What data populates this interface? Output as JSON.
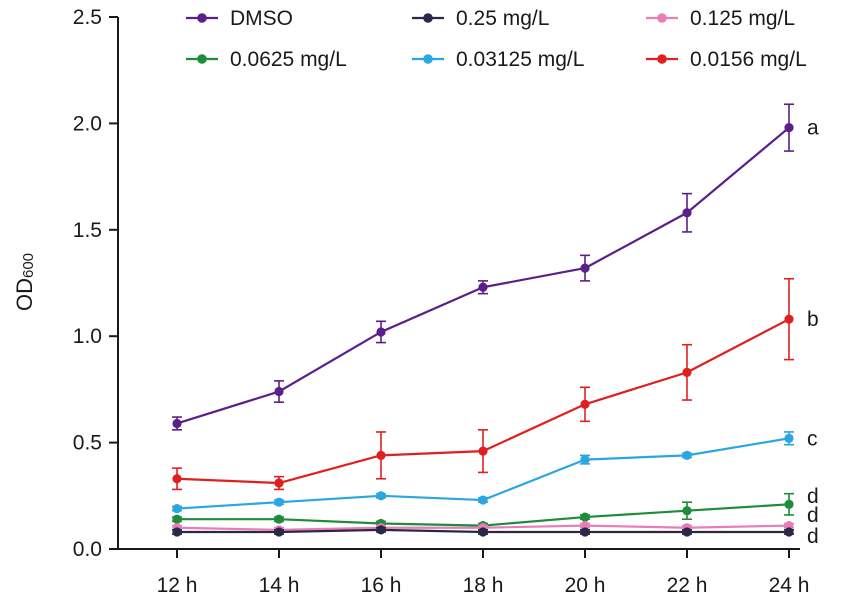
{
  "chart_data": {
    "type": "line",
    "title": "",
    "xlabel": "",
    "ylabel": "OD",
    "ylabel_subscript": "600",
    "categories": [
      "12 h",
      "14 h",
      "16 h",
      "18 h",
      "20 h",
      "22 h",
      "24 h"
    ],
    "ylim": [
      0,
      2.5
    ],
    "yticks": [
      "0.0",
      "0.5",
      "1.0",
      "1.5",
      "2.0",
      "2.5"
    ],
    "ytick_values": [
      0,
      0.5,
      1.0,
      1.5,
      2.0,
      2.5
    ],
    "grid": false,
    "legend_position": "top",
    "series": [
      {
        "name": "DMSO",
        "color": "#5b1f8a",
        "values": [
          0.59,
          0.74,
          1.02,
          1.23,
          1.32,
          1.58,
          1.98
        ],
        "errors": [
          0.03,
          0.05,
          0.05,
          0.03,
          0.06,
          0.09,
          0.11
        ],
        "letter": "a"
      },
      {
        "name": "0.25 mg/L",
        "color": "#2b2747",
        "values": [
          0.08,
          0.08,
          0.09,
          0.08,
          0.08,
          0.08,
          0.08
        ],
        "errors": [
          0.01,
          0.01,
          0.01,
          0.01,
          0.01,
          0.01,
          0.01
        ],
        "letter": "d"
      },
      {
        "name": "0.125 mg/L",
        "color": "#e77fb6",
        "values": [
          0.1,
          0.09,
          0.1,
          0.1,
          0.11,
          0.1,
          0.11
        ],
        "errors": [
          0.01,
          0.01,
          0.01,
          0.01,
          0.01,
          0.01,
          0.01
        ],
        "letter": "d"
      },
      {
        "name": "0.0625 mg/L",
        "color": "#1e8c3a",
        "values": [
          0.14,
          0.14,
          0.12,
          0.11,
          0.15,
          0.18,
          0.21
        ],
        "errors": [
          0.01,
          0.01,
          0.01,
          0.01,
          0.01,
          0.04,
          0.05
        ],
        "letter": "d"
      },
      {
        "name": "0.03125 mg/L",
        "color": "#2aa6e0",
        "values": [
          0.19,
          0.22,
          0.25,
          0.23,
          0.42,
          0.44,
          0.52
        ],
        "errors": [
          0.01,
          0.01,
          0.01,
          0.01,
          0.02,
          0.01,
          0.03
        ],
        "letter": "c"
      },
      {
        "name": "0.0156 mg/L",
        "color": "#e0201e",
        "values": [
          0.33,
          0.31,
          0.44,
          0.46,
          0.68,
          0.83,
          1.08
        ],
        "errors": [
          0.05,
          0.03,
          0.11,
          0.1,
          0.08,
          0.13,
          0.19
        ],
        "letter": "b"
      }
    ],
    "significance_letters": [
      "a",
      "b",
      "c",
      "d",
      "d",
      "d"
    ],
    "significance_values": [
      1.98,
      1.08,
      0.52,
      0.25,
      0.16,
      0.06
    ]
  }
}
